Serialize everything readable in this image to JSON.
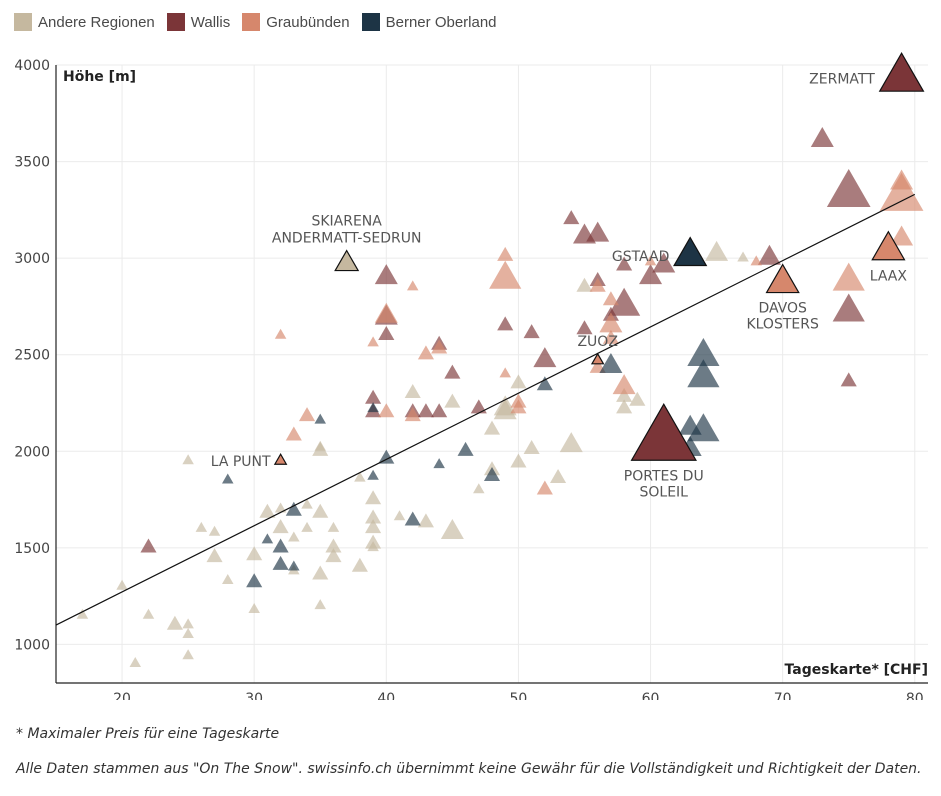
{
  "chart_data": {
    "type": "scatter",
    "title": "",
    "xlabel": "Tageskarte* [CHF]",
    "ylabel": "Höhe [m]",
    "xlim": [
      15,
      81
    ],
    "ylim": [
      800,
      4000
    ],
    "x_ticks": [
      20,
      30,
      40,
      50,
      60,
      70,
      80
    ],
    "y_ticks": [
      1000,
      1500,
      2000,
      2500,
      3000,
      3500,
      4000
    ],
    "grid": true,
    "legend_position": "top-left",
    "marker": "triangle",
    "trendline": {
      "x": [
        15,
        80
      ],
      "y": [
        1100,
        3330
      ]
    },
    "series": [
      {
        "name": "Andere Regionen",
        "color": "#c5b89f",
        "points": [
          [
            17,
            1150,
            1
          ],
          [
            20,
            1300,
            1
          ],
          [
            21,
            900,
            1
          ],
          [
            22,
            1150,
            1
          ],
          [
            24,
            1100,
            2
          ],
          [
            25,
            1100,
            1
          ],
          [
            25,
            1050,
            1
          ],
          [
            25,
            940,
            1
          ],
          [
            25,
            1950,
            1
          ],
          [
            26,
            1600,
            1
          ],
          [
            27,
            1450,
            2
          ],
          [
            27,
            1580,
            1
          ],
          [
            28,
            1330,
            1
          ],
          [
            30,
            1460,
            2
          ],
          [
            30,
            1180,
            1
          ],
          [
            31,
            1680,
            2
          ],
          [
            32,
            1600,
            2
          ],
          [
            32,
            1700,
            1
          ],
          [
            33,
            1550,
            1
          ],
          [
            33,
            1380,
            1
          ],
          [
            34,
            1720,
            1
          ],
          [
            34,
            1600,
            1
          ],
          [
            35,
            1680,
            2
          ],
          [
            35,
            1360,
            2
          ],
          [
            35,
            1200,
            1
          ],
          [
            35,
            2000,
            2
          ],
          [
            35,
            2020,
            1
          ],
          [
            36,
            1500,
            2
          ],
          [
            36,
            1450,
            2
          ],
          [
            36,
            1600,
            1
          ],
          [
            38,
            1860,
            1
          ],
          [
            38,
            1400,
            2
          ],
          [
            39,
            1750,
            2
          ],
          [
            39,
            1650,
            2
          ],
          [
            39,
            1600,
            2
          ],
          [
            39,
            1520,
            2
          ],
          [
            39,
            1500,
            1
          ],
          [
            41,
            1660,
            1
          ],
          [
            42,
            2300,
            2
          ],
          [
            43,
            1630,
            2
          ],
          [
            45,
            1580,
            3
          ],
          [
            45,
            2250,
            2
          ],
          [
            47,
            1800,
            1
          ],
          [
            48,
            2110,
            2
          ],
          [
            48,
            1900,
            2
          ],
          [
            49,
            2220,
            3
          ],
          [
            49,
            2200,
            3
          ],
          [
            50,
            2350,
            2
          ],
          [
            50,
            1940,
            2
          ],
          [
            51,
            2010,
            2
          ],
          [
            53,
            1860,
            2
          ],
          [
            54,
            2030,
            3
          ],
          [
            55,
            2850,
            2
          ],
          [
            58,
            2220,
            2
          ],
          [
            58,
            2280,
            2
          ],
          [
            59,
            2260,
            2
          ],
          [
            63,
            3000,
            3
          ],
          [
            65,
            3020,
            3
          ],
          [
            67,
            3000,
            1
          ]
        ]
      },
      {
        "name": "Wallis",
        "color": "#7b3538",
        "points": [
          [
            22,
            1500,
            2
          ],
          [
            39,
            2270,
            2
          ],
          [
            39,
            2200,
            2
          ],
          [
            40,
            2900,
            3
          ],
          [
            40,
            2690,
            3
          ],
          [
            40,
            2600,
            2
          ],
          [
            42,
            2200,
            2
          ],
          [
            43,
            2200,
            2
          ],
          [
            44,
            2550,
            2
          ],
          [
            44,
            2200,
            2
          ],
          [
            45,
            2400,
            2
          ],
          [
            47,
            2220,
            2
          ],
          [
            49,
            2650,
            2
          ],
          [
            51,
            2610,
            2
          ],
          [
            52,
            2470,
            3
          ],
          [
            54,
            3200,
            2
          ],
          [
            55,
            3110,
            3
          ],
          [
            55,
            2630,
            2
          ],
          [
            56,
            3120,
            3
          ],
          [
            56,
            2880,
            2
          ],
          [
            57,
            2700,
            2
          ],
          [
            58,
            2750,
            4
          ],
          [
            58,
            2960,
            2
          ],
          [
            60,
            2900,
            3
          ],
          [
            61,
            2960,
            3
          ],
          [
            69,
            3000,
            3
          ],
          [
            73,
            3610,
            3
          ],
          [
            75,
            3330,
            5
          ],
          [
            75,
            2720,
            4
          ],
          [
            75,
            2360,
            2
          ]
        ]
      },
      {
        "name": "Graubünden",
        "color": "#d6876c",
        "points": [
          [
            32,
            2600,
            1
          ],
          [
            33,
            2080,
            2
          ],
          [
            34,
            2180,
            2
          ],
          [
            39,
            2560,
            1
          ],
          [
            40,
            2200,
            2
          ],
          [
            40,
            2700,
            3
          ],
          [
            42,
            2850,
            1
          ],
          [
            42,
            2180,
            2
          ],
          [
            43,
            2500,
            2
          ],
          [
            44,
            2530,
            2
          ],
          [
            49,
            2890,
            4
          ],
          [
            49,
            3010,
            2
          ],
          [
            49,
            2400,
            1
          ],
          [
            50,
            2250,
            2
          ],
          [
            50,
            2220,
            2
          ],
          [
            52,
            1800,
            2
          ],
          [
            56,
            2430,
            2
          ],
          [
            56,
            2850,
            2
          ],
          [
            57,
            2780,
            2
          ],
          [
            57,
            2650,
            3
          ],
          [
            57,
            2580,
            2
          ],
          [
            58,
            2330,
            3
          ],
          [
            60,
            2980,
            1
          ],
          [
            68,
            2980,
            1
          ],
          [
            75,
            2880,
            4
          ],
          [
            79,
            3310,
            5
          ],
          [
            79,
            3390,
            3
          ],
          [
            79,
            3100,
            3
          ]
        ]
      },
      {
        "name": "Berner Oberland",
        "color": "#1d3445",
        "points": [
          [
            28,
            1850,
            1
          ],
          [
            30,
            1320,
            2
          ],
          [
            31,
            1540,
            1
          ],
          [
            32,
            1500,
            2
          ],
          [
            32,
            1410,
            2
          ],
          [
            33,
            1690,
            2
          ],
          [
            33,
            1400,
            1
          ],
          [
            35,
            2160,
            1
          ],
          [
            39,
            2220,
            1
          ],
          [
            39,
            1870,
            1
          ],
          [
            40,
            1960,
            2
          ],
          [
            42,
            1640,
            2
          ],
          [
            44,
            1930,
            1
          ],
          [
            46,
            2000,
            2
          ],
          [
            48,
            1870,
            2
          ],
          [
            52,
            2340,
            2
          ],
          [
            57,
            2440,
            3
          ],
          [
            63,
            2120,
            3
          ],
          [
            63,
            2010,
            3
          ],
          [
            64,
            2490,
            4
          ],
          [
            64,
            2380,
            4
          ],
          [
            64,
            2100,
            4
          ]
        ]
      }
    ],
    "labeled_points": [
      {
        "label": "ZERMATT",
        "x": 79,
        "y": 3930,
        "size": 5,
        "color": "#7b3538",
        "side": "left"
      },
      {
        "label": "SKIARENA",
        "label2": "ANDERMATT-SEDRUN",
        "x": 37,
        "y": 2970,
        "size": 3,
        "color": "#c5b89f",
        "side": "above"
      },
      {
        "label": "GSTAAD",
        "x": 63,
        "y": 3010,
        "size": 4,
        "color": "#1d3445",
        "side": "left"
      },
      {
        "label": "DAVOS",
        "label2": "KLOSTERS",
        "x": 70,
        "y": 2870,
        "size": 4,
        "color": "#d6876c",
        "side": "below"
      },
      {
        "label": "LAAX",
        "x": 78,
        "y": 3040,
        "size": 4,
        "color": "#d6876c",
        "side": "belowright"
      },
      {
        "label": "ZUOZ",
        "x": 56,
        "y": 2470,
        "size": 1,
        "color": "#d6876c",
        "side": "above"
      },
      {
        "label": "LA PUNT",
        "x": 32,
        "y": 1950,
        "size": 1,
        "color": "#d6876c",
        "side": "left"
      },
      {
        "label": "PORTES DU",
        "label2": "SOLEIL",
        "x": 61,
        "y": 2050,
        "size": 6,
        "color": "#7b3538",
        "side": "below"
      }
    ]
  },
  "notes": {
    "footnote": "* Maximaler Preis für eine Tageskarte",
    "source": "Alle Daten stammen aus \"On The Snow\". swissinfo.ch übernimmt keine Gewähr für die Vollständigkeit und Richtigkeit der Daten."
  }
}
